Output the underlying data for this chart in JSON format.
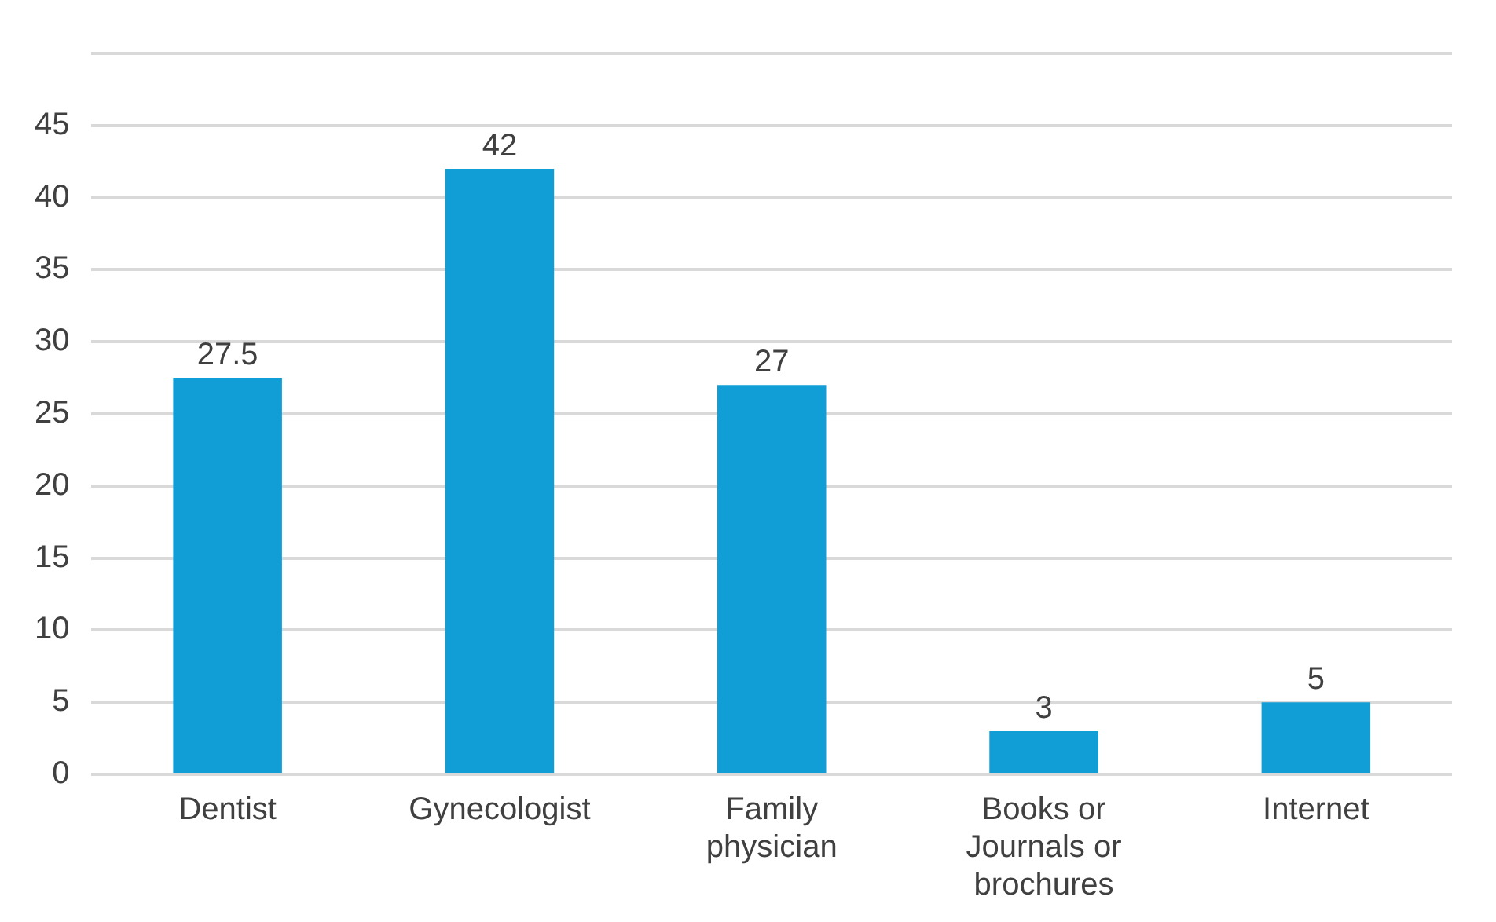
{
  "chart_data": {
    "type": "bar",
    "categories": [
      "Dentist",
      "Gynecologist",
      "Family physician",
      "Books or Journals or brochures",
      "Internet"
    ],
    "values": [
      27.5,
      42,
      27,
      3,
      5
    ],
    "color": "#119ed6",
    "ylim": [
      0,
      50
    ],
    "yticks": [
      0,
      5,
      10,
      15,
      20,
      25,
      30,
      35,
      40,
      45,
      {
        "value": 50,
        "label": null
      }
    ],
    "grid": "y",
    "data_labels": true,
    "legend": false
  }
}
